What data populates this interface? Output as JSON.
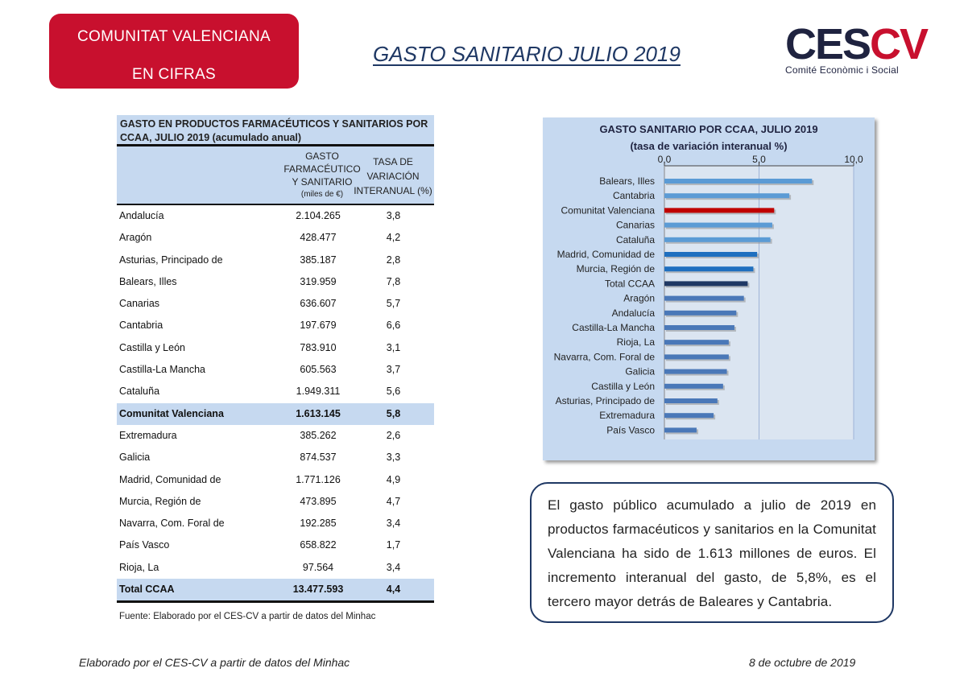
{
  "header": {
    "badge_line1": "COMUNITAT VALENCIANA",
    "badge_line2": "EN CIFRAS",
    "title": "GASTO SANITARIO JULIO 2019",
    "logo_ces": "CES",
    "logo_cv": "CV",
    "logo_sub": "Comité Econòmic i Social"
  },
  "table": {
    "title": "GASTO EN PRODUCTOS FARMACÉUTICOS Y SANITARIOS POR CCAA, JULIO 2019 (acumulado anual)",
    "col1_line1": "GASTO",
    "col1_line2": "FARMACÉUTICO",
    "col1_line3": "Y SANITARIO",
    "col1_unit": "(miles de €)",
    "col2_line1": "TASA DE",
    "col2_line2": "VARIACIÓN",
    "col2_line3": "INTERANUAL (%)",
    "rows": [
      {
        "name": "Andalucía",
        "value": "2.104.265",
        "rate": "3,8"
      },
      {
        "name": "Aragón",
        "value": "428.477",
        "rate": "4,2"
      },
      {
        "name": "Asturias, Principado de",
        "value": "385.187",
        "rate": "2,8"
      },
      {
        "name": "Balears, Illes",
        "value": "319.959",
        "rate": "7,8"
      },
      {
        "name": "Canarias",
        "value": "636.607",
        "rate": "5,7"
      },
      {
        "name": "Cantabria",
        "value": "197.679",
        "rate": "6,6"
      },
      {
        "name": "Castilla y León",
        "value": "783.910",
        "rate": "3,1"
      },
      {
        "name": "Castilla-La Mancha",
        "value": "605.563",
        "rate": "3,7"
      },
      {
        "name": "Cataluña",
        "value": "1.949.311",
        "rate": "5,6"
      },
      {
        "name": "Comunitat Valenciana",
        "value": "1.613.145",
        "rate": "5,8"
      },
      {
        "name": "Extremadura",
        "value": "385.262",
        "rate": "2,6"
      },
      {
        "name": "Galicia",
        "value": "874.537",
        "rate": "3,3"
      },
      {
        "name": "Madrid, Comunidad de",
        "value": "1.771.126",
        "rate": "4,9"
      },
      {
        "name": "Murcia, Región de",
        "value": "473.895",
        "rate": "4,7"
      },
      {
        "name": "Navarra, Com. Foral de",
        "value": "192.285",
        "rate": "3,4"
      },
      {
        "name": "País Vasco",
        "value": "658.822",
        "rate": "1,7"
      },
      {
        "name": "Rioja, La",
        "value": "97.564",
        "rate": "3,4"
      },
      {
        "name": "Total CCAA",
        "value": "13.477.593",
        "rate": "4,4"
      }
    ],
    "source": "Fuente: Elaborado por el CES-CV a partir de datos del Minhac"
  },
  "chart_data": {
    "type": "bar",
    "orientation": "horizontal",
    "title": "GASTO SANITARIO POR CCAA, JULIO 2019",
    "subtitle": "(tasa de variación interanual %)",
    "xlim": [
      0,
      10
    ],
    "ticks": [
      "0,0",
      "5,0",
      "10,0"
    ],
    "tick_values": [
      0,
      5,
      10
    ],
    "axis_position": "top",
    "grid": true,
    "categories": [
      "Balears, Illes",
      "Cantabria",
      "Comunitat Valenciana",
      "Canarias",
      "Cataluña",
      "Madrid, Comunidad de",
      "Murcia, Región de",
      "Total CCAA",
      "Aragón",
      "Andalucía",
      "Castilla-La Mancha",
      "Rioja, La",
      "Navarra, Com. Foral de",
      "Galicia",
      "Castilla y León",
      "Asturias, Principado de",
      "Extremadura",
      "País Vasco"
    ],
    "values": [
      7.8,
      6.6,
      5.8,
      5.7,
      5.6,
      4.9,
      4.7,
      4.4,
      4.2,
      3.8,
      3.7,
      3.4,
      3.4,
      3.3,
      3.1,
      2.8,
      2.6,
      1.7
    ],
    "colors": [
      "#5b9bd5",
      "#5b9bd5",
      "#c00000",
      "#5b9bd5",
      "#5b9bd5",
      "#1f6fbf",
      "#1f6fbf",
      "#1f3864",
      "#4a78b8",
      "#4a78b8",
      "#4a78b8",
      "#4a78b8",
      "#4a78b8",
      "#4a78b8",
      "#4a78b8",
      "#4a78b8",
      "#4a78b8",
      "#4a78b8"
    ]
  },
  "summary": "El gasto público acumulado a julio de 2019 en productos farmacéuticos y sanitarios en la Comunitat Valenciana ha sido de 1.613 millones de euros. El incremento interanual del gasto, de 5,8%, es el tercero mayor detrás de Baleares y Cantabria.",
  "footer": {
    "left": "Elaborado por el CES-CV a partir de datos del Minhac",
    "right": "8 de octubre de 2019"
  }
}
